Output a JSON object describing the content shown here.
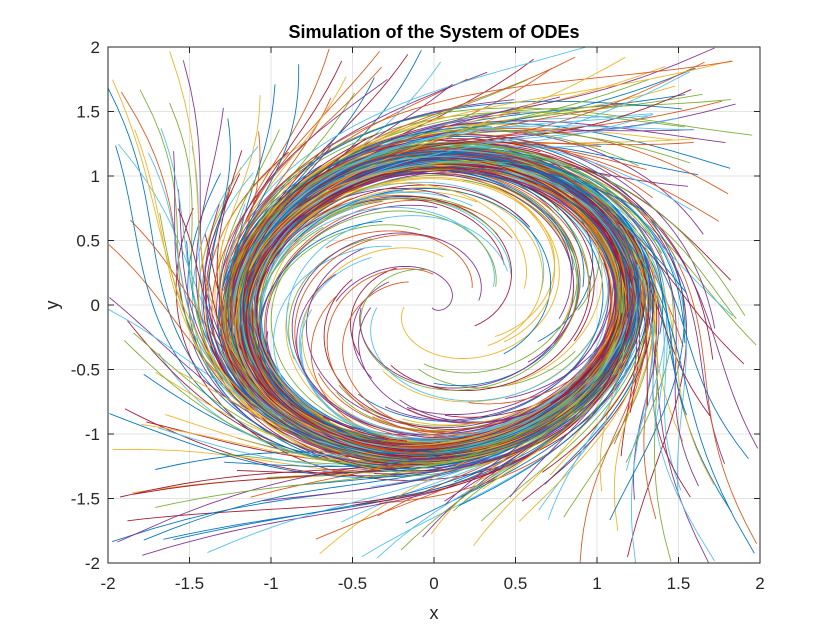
{
  "chart_data": {
    "type": "line",
    "title": "Simulation of the System of ODEs",
    "xlabel": "x",
    "ylabel": "y",
    "xlim": [
      -2,
      2
    ],
    "ylim": [
      -2,
      2
    ],
    "xticks": [
      -2,
      -1.5,
      -1,
      -0.5,
      0,
      0.5,
      1,
      1.5,
      2
    ],
    "yticks": [
      -2,
      -1.5,
      -1,
      -0.5,
      0,
      0.5,
      1,
      1.5,
      2
    ],
    "xtick_labels": [
      "-2",
      "-1.5",
      "-1",
      "-0.5",
      "0",
      "0.5",
      "1",
      "1.5",
      "2"
    ],
    "ytick_labels": [
      "-2",
      "-1.5",
      "-1",
      "-0.5",
      "0",
      "0.5",
      "1",
      "1.5",
      "2"
    ],
    "grid": true,
    "series_colors": [
      "#0072BD",
      "#D95319",
      "#EDB120",
      "#7E2F8E",
      "#77AC30",
      "#4DBEEE",
      "#A2142F"
    ],
    "limit_cycle_radius": 1.0,
    "trajectory_count": 400
  }
}
